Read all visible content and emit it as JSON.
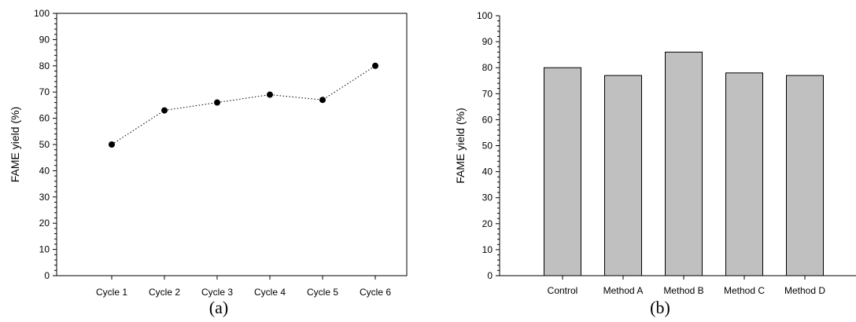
{
  "chart_data": [
    {
      "type": "line",
      "panel_label": "(a)",
      "ylabel": "FAME yield (%)",
      "categories": [
        "Cycle 1",
        "Cycle 2",
        "Cycle 3",
        "Cycle 4",
        "Cycle 5",
        "Cycle 6"
      ],
      "values": [
        50,
        63,
        66,
        69,
        67,
        80
      ],
      "ylim": [
        0,
        100
      ],
      "yticks": [
        "0",
        "10",
        "20",
        "30",
        "40",
        "50",
        "60",
        "70",
        "80",
        "90",
        "100"
      ],
      "grid": false,
      "line_style": "dotted",
      "marker": "filled-circle"
    },
    {
      "type": "bar",
      "panel_label": "(b)",
      "ylabel": "FAME yield (%)",
      "categories": [
        "Control",
        "Method A",
        "Method B",
        "Method C",
        "Method D"
      ],
      "values": [
        80,
        77,
        86,
        78,
        77
      ],
      "ylim": [
        0,
        100
      ],
      "yticks": [
        "0",
        "10",
        "20",
        "30",
        "40",
        "50",
        "60",
        "70",
        "80",
        "90",
        "100"
      ],
      "grid": false,
      "bar_color": "#c0c0c0"
    }
  ]
}
